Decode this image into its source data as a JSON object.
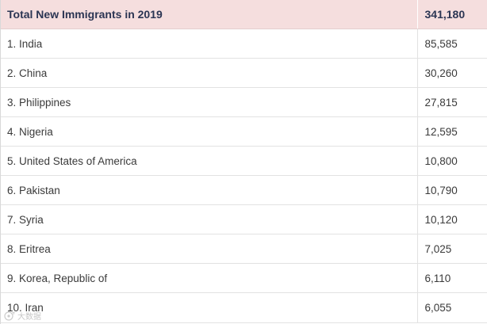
{
  "table": {
    "header": {
      "label": "Total New Immigrants in 2019",
      "value": "341,180"
    },
    "rows": [
      {
        "country": "1. India",
        "count": "85,585"
      },
      {
        "country": "2. China",
        "count": "30,260"
      },
      {
        "country": "3. Philippines",
        "count": "27,815"
      },
      {
        "country": "4. Nigeria",
        "count": "12,595"
      },
      {
        "country": "5. United States of America",
        "count": "10,800"
      },
      {
        "country": "6. Pakistan",
        "count": "10,790"
      },
      {
        "country": "7. Syria",
        "count": "10,120"
      },
      {
        "country": "8. Eritrea",
        "count": "7,025"
      },
      {
        "country": "9. Korea, Republic of",
        "count": "6,110"
      },
      {
        "country": "10. Iran",
        "count": "6,055"
      }
    ]
  },
  "watermark": {
    "icon": "watermark-logo-icon",
    "text": "大数据"
  },
  "colors": {
    "header_bg": "#f5dede",
    "header_text": "#2b3553",
    "row_text": "#3a3a3a",
    "grid_line": "#e2e2e2"
  }
}
